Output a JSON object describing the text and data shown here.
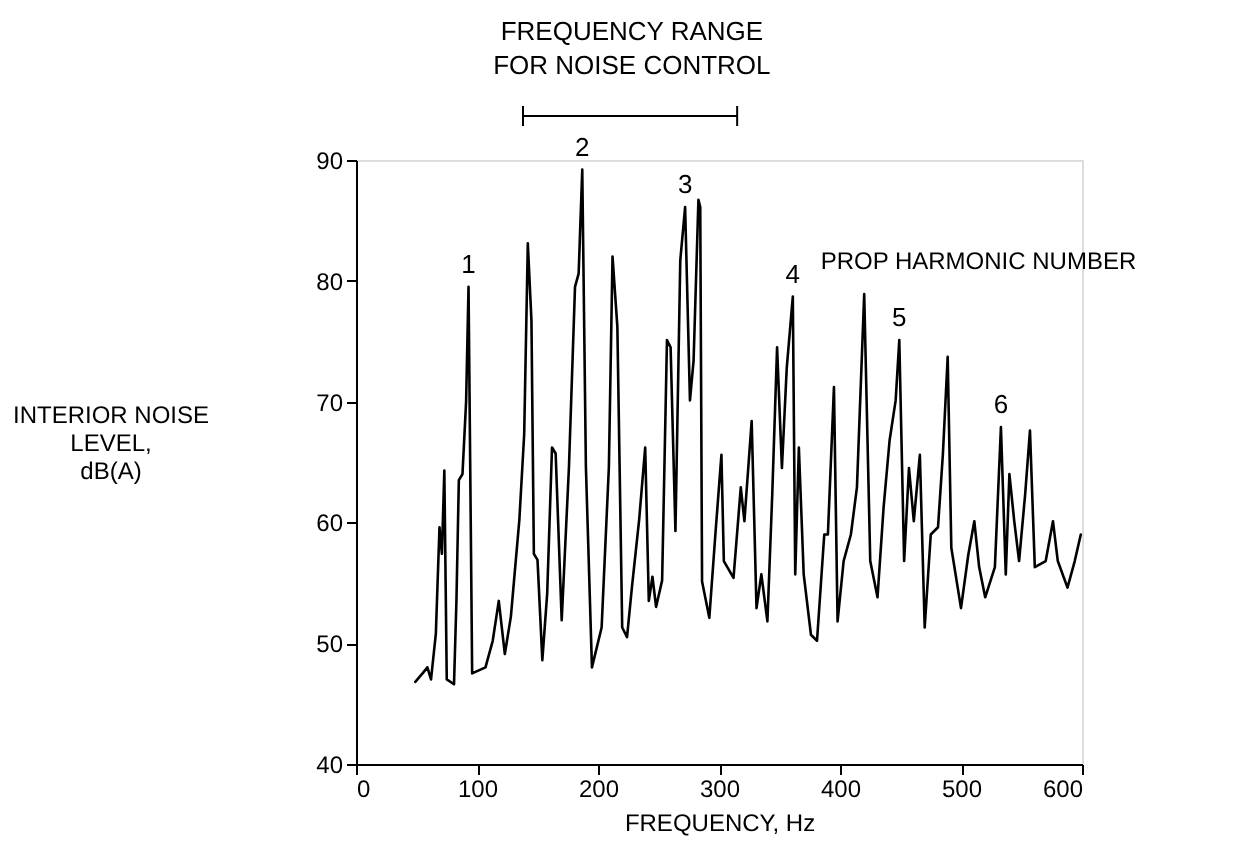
{
  "chart_data": {
    "type": "line",
    "xlabel": "FREQUENCY, Hz",
    "ylabel": "INTERIOR NOISE\nLEVEL,\ndB(A)",
    "x": [
      49,
      55,
      59,
      62,
      66,
      69,
      71,
      73,
      75,
      81,
      83,
      85,
      88,
      91,
      93,
      96,
      107,
      113,
      118,
      123,
      128,
      135,
      139,
      142,
      145,
      147,
      150,
      154,
      158,
      162,
      165,
      170,
      176,
      181,
      184,
      187,
      190,
      195,
      203,
      209,
      212,
      216,
      220,
      224,
      228,
      234,
      239,
      242,
      245,
      248,
      253,
      257,
      260,
      264,
      268,
      272,
      276,
      279,
      283,
      284.5,
      286,
      292,
      297,
      302,
      304,
      312,
      318,
      321,
      327,
      331,
      335,
      340,
      344,
      348,
      352,
      356,
      361,
      363,
      366,
      370,
      376,
      381,
      387,
      390,
      395,
      398,
      403,
      409,
      414,
      420,
      425,
      431,
      436,
      441,
      446,
      449,
      453,
      457,
      461,
      466,
      470,
      475,
      481,
      485,
      489,
      492,
      500,
      506,
      511,
      515,
      520,
      528,
      533,
      537,
      540,
      544,
      548,
      553,
      557,
      561,
      570,
      576,
      580,
      588,
      594,
      599
    ],
    "series": [
      {
        "color": "#000000",
        "values": [
          46.8,
          47.5,
          48,
          47,
          50.8,
          59.6,
          57.4,
          64.3,
          47,
          46.6,
          53.5,
          63.5,
          64,
          70,
          79.5,
          47.5,
          48,
          50.2,
          53.5,
          49.1,
          52.2,
          60.2,
          67.3,
          83.1,
          76.7,
          57.4,
          56.9,
          48.6,
          54.1,
          66.2,
          65.7,
          51.9,
          64.6,
          79.5,
          80.6,
          89.2,
          64.6,
          48,
          51.3,
          64.6,
          82,
          76.2,
          51.3,
          50.5,
          54.6,
          60.2,
          66.2,
          53.5,
          55.5,
          53,
          55.2,
          75.1,
          74.5,
          59.3,
          81.7,
          86.1,
          70.1,
          73.4,
          86.7,
          86.1,
          55.1,
          52.1,
          59,
          65.6,
          56.8,
          55.4,
          62.9,
          60.1,
          68.4,
          52.9,
          55.7,
          51.8,
          62.3,
          74.5,
          64.5,
          72.8,
          78.7,
          55.7,
          66.2,
          55.7,
          50.7,
          50.2,
          59,
          59,
          71.2,
          51.8,
          56.8,
          59,
          62.9,
          78.9,
          56.8,
          53.8,
          61.2,
          66.8,
          70.1,
          75.1,
          56.8,
          64.5,
          60.1,
          65.6,
          51.3,
          59,
          59.6,
          65.6,
          73.7,
          57.9,
          52.9,
          57.3,
          60.1,
          56.3,
          53.8,
          56.3,
          67.9,
          55.7,
          64,
          60.1,
          56.8,
          62.3,
          67.6,
          56.3,
          56.8,
          60.1,
          56.8,
          54.6,
          56.8,
          59
        ]
      }
    ],
    "xlim": [
      0,
      600
    ],
    "xticks": [
      0,
      100,
      200,
      300,
      400,
      500,
      600
    ],
    "ylim": [
      40,
      90
    ],
    "yticks": [
      40,
      50,
      60,
      70,
      80,
      90
    ],
    "grid": false,
    "marker": "none",
    "line_style": "solid",
    "annotations": [
      {
        "text": "1",
        "x": 93,
        "y": 79.5
      },
      {
        "text": "2",
        "x": 187,
        "y": 89.2
      },
      {
        "text": "3",
        "x": 272,
        "y": 86.1
      },
      {
        "text": "4",
        "x": 361,
        "y": 78.7
      },
      {
        "text": "5",
        "x": 449,
        "y": 75.1
      },
      {
        "text": "6",
        "x": 533,
        "y": 67.9
      },
      "PROP HARMONIC NUMBER",
      "FREQUENCY RANGE\nFOR NOISE CONTROL"
    ]
  }
}
